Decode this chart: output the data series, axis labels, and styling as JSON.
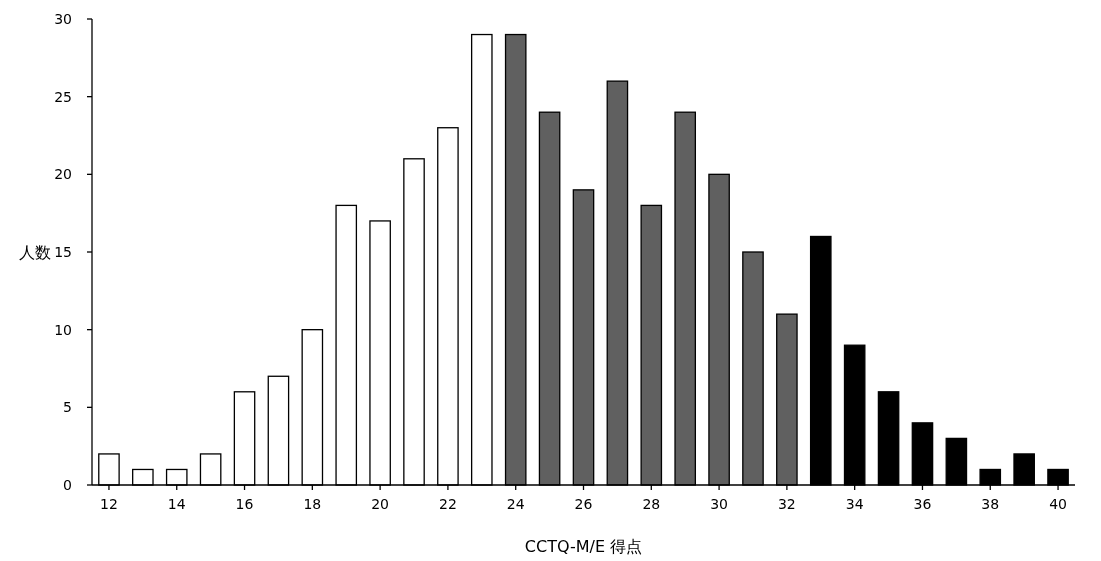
{
  "chart_data": {
    "type": "bar",
    "xlabel": "CCTQ-M/E 得点",
    "ylabel": "人数",
    "x": [
      12,
      13,
      14,
      15,
      16,
      17,
      18,
      19,
      20,
      21,
      22,
      23,
      24,
      25,
      26,
      27,
      28,
      29,
      30,
      31,
      32,
      33,
      34,
      35,
      36,
      37,
      38,
      39,
      40
    ],
    "values": [
      2,
      1,
      1,
      2,
      6,
      7,
      10,
      18,
      17,
      21,
      23,
      29,
      29,
      24,
      19,
      26,
      18,
      24,
      20,
      15,
      11,
      16,
      9,
      6,
      4,
      3,
      1,
      2,
      1
    ],
    "colors": [
      "#ffffff",
      "#ffffff",
      "#ffffff",
      "#ffffff",
      "#ffffff",
      "#ffffff",
      "#ffffff",
      "#ffffff",
      "#ffffff",
      "#ffffff",
      "#ffffff",
      "#ffffff",
      "#606060",
      "#606060",
      "#606060",
      "#606060",
      "#606060",
      "#606060",
      "#606060",
      "#606060",
      "#606060",
      "#000000",
      "#000000",
      "#000000",
      "#000000",
      "#000000",
      "#000000",
      "#000000",
      "#000000"
    ],
    "xlim": [
      11.5,
      40.5
    ],
    "ylim": [
      0,
      30
    ],
    "xticks": [
      12,
      14,
      16,
      18,
      20,
      22,
      24,
      26,
      28,
      30,
      32,
      34,
      36,
      38,
      40
    ],
    "yticks": [
      0,
      5,
      10,
      15,
      20,
      25,
      30
    ]
  }
}
